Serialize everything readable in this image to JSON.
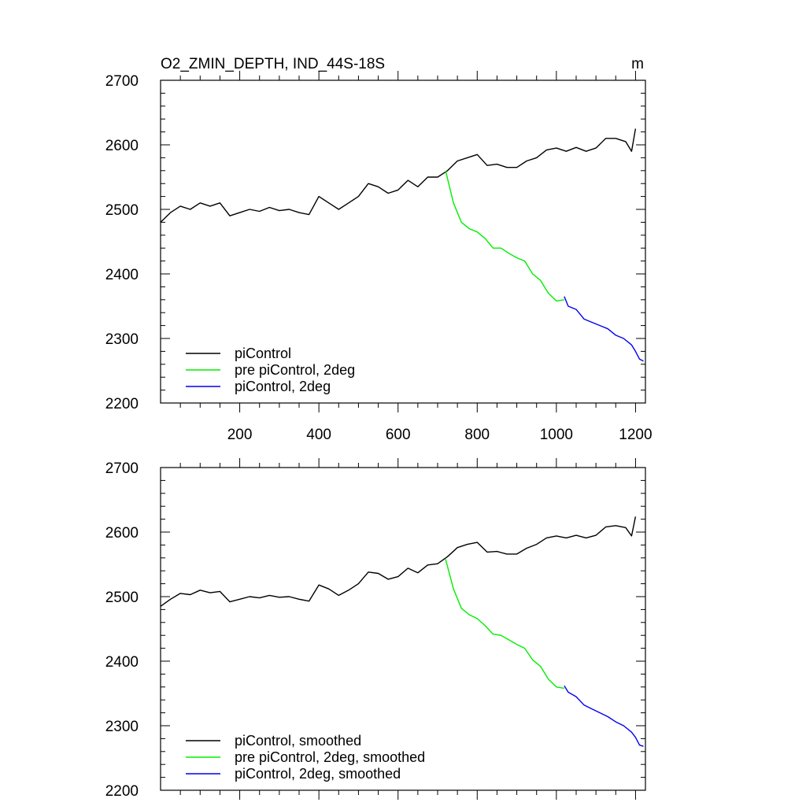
{
  "colors": {
    "black": "#000000",
    "green": "#00ee00",
    "blue": "#0000ee"
  },
  "chart_data": [
    {
      "type": "line",
      "title": "O2_ZMIN_DEPTH, IND_44S-18S",
      "units": "m",
      "xlim": [
        0,
        1225
      ],
      "ylim": [
        2200,
        2700
      ],
      "xticks": [
        200,
        400,
        600,
        800,
        1000,
        1200
      ],
      "xtick_labels": [
        "200",
        "400",
        "600",
        "800",
        "1000",
        "1200"
      ],
      "yticks": [
        2200,
        2300,
        2400,
        2500,
        2600,
        2700
      ],
      "ytick_labels": [
        "2200",
        "2300",
        "2400",
        "2500",
        "2600",
        "2700"
      ],
      "legend_position": "bottom-left",
      "series": [
        {
          "name": "piControl",
          "color": "#000000",
          "x": [
            0,
            25,
            50,
            75,
            100,
            125,
            150,
            175,
            200,
            225,
            250,
            275,
            300,
            325,
            350,
            375,
            400,
            425,
            450,
            475,
            500,
            525,
            550,
            575,
            600,
            625,
            650,
            675,
            700,
            725,
            750,
            775,
            800,
            825,
            850,
            875,
            900,
            925,
            950,
            975,
            1000,
            1025,
            1050,
            1075,
            1100,
            1125,
            1150,
            1175,
            1190,
            1200
          ],
          "y": [
            2480,
            2495,
            2505,
            2500,
            2510,
            2505,
            2510,
            2490,
            2495,
            2500,
            2497,
            2503,
            2498,
            2500,
            2495,
            2492,
            2520,
            2510,
            2500,
            2510,
            2520,
            2540,
            2535,
            2525,
            2530,
            2545,
            2535,
            2550,
            2550,
            2560,
            2575,
            2580,
            2585,
            2568,
            2570,
            2565,
            2565,
            2575,
            2580,
            2592,
            2595,
            2590,
            2596,
            2590,
            2595,
            2610,
            2610,
            2605,
            2590,
            2625
          ]
        },
        {
          "name": "pre piControl, 2deg",
          "color": "#00ee00",
          "x": [
            720,
            740,
            760,
            780,
            800,
            820,
            840,
            860,
            880,
            900,
            920,
            940,
            960,
            980,
            1000,
            1020
          ],
          "y": [
            2560,
            2510,
            2480,
            2470,
            2465,
            2455,
            2440,
            2440,
            2432,
            2425,
            2420,
            2400,
            2390,
            2370,
            2358,
            2360
          ]
        },
        {
          "name": "piControl, 2deg",
          "color": "#0000ee",
          "x": [
            1020,
            1030,
            1050,
            1070,
            1090,
            1110,
            1130,
            1150,
            1170,
            1190,
            1200,
            1210,
            1220
          ],
          "y": [
            2365,
            2350,
            2345,
            2330,
            2325,
            2320,
            2315,
            2305,
            2300,
            2290,
            2280,
            2268,
            2265
          ]
        }
      ]
    },
    {
      "type": "line",
      "xlim": [
        0,
        1225
      ],
      "ylim": [
        2200,
        2700
      ],
      "xticks": [
        200,
        400,
        600,
        800,
        1000,
        1200
      ],
      "yticks": [
        2200,
        2300,
        2400,
        2500,
        2600,
        2700
      ],
      "ytick_labels": [
        "2200",
        "2300",
        "2400",
        "2500",
        "2600",
        "2700"
      ],
      "legend_position": "bottom-left",
      "series": [
        {
          "name": "piControl, smoothed",
          "color": "#000000",
          "x": [
            0,
            25,
            50,
            75,
            100,
            125,
            150,
            175,
            200,
            225,
            250,
            275,
            300,
            325,
            350,
            375,
            400,
            425,
            450,
            475,
            500,
            525,
            550,
            575,
            600,
            625,
            650,
            675,
            700,
            725,
            750,
            775,
            800,
            825,
            850,
            875,
            900,
            925,
            950,
            975,
            1000,
            1025,
            1050,
            1075,
            1100,
            1125,
            1150,
            1175,
            1190,
            1200
          ],
          "y": [
            2485,
            2496,
            2505,
            2503,
            2510,
            2506,
            2508,
            2492,
            2496,
            2500,
            2498,
            2502,
            2499,
            2500,
            2496,
            2493,
            2518,
            2512,
            2502,
            2510,
            2520,
            2538,
            2536,
            2527,
            2531,
            2544,
            2537,
            2549,
            2551,
            2562,
            2576,
            2581,
            2584,
            2569,
            2570,
            2566,
            2566,
            2575,
            2581,
            2591,
            2594,
            2591,
            2595,
            2591,
            2595,
            2608,
            2610,
            2607,
            2594,
            2624
          ]
        },
        {
          "name": "pre piControl, 2deg, smoothed",
          "color": "#00ee00",
          "x": [
            720,
            740,
            760,
            780,
            800,
            820,
            840,
            860,
            880,
            900,
            920,
            940,
            960,
            980,
            1000,
            1020
          ],
          "y": [
            2558,
            2512,
            2482,
            2472,
            2466,
            2455,
            2442,
            2440,
            2433,
            2426,
            2420,
            2402,
            2392,
            2372,
            2360,
            2358
          ]
        },
        {
          "name": "piControl, 2deg, smoothed",
          "color": "#0000ee",
          "x": [
            1020,
            1030,
            1050,
            1070,
            1090,
            1110,
            1130,
            1150,
            1170,
            1190,
            1200,
            1210,
            1220
          ],
          "y": [
            2362,
            2352,
            2345,
            2332,
            2326,
            2320,
            2314,
            2306,
            2300,
            2290,
            2282,
            2270,
            2268
          ]
        }
      ]
    }
  ]
}
